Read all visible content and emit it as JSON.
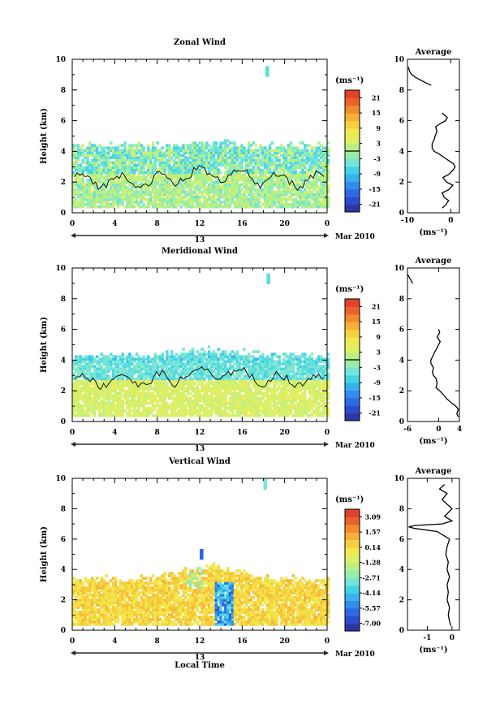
{
  "chart_data": [
    {
      "type": "heatmap",
      "title": "Zonal Wind",
      "ylabel": "Height (km)",
      "xlim": [
        0,
        24
      ],
      "ylim": [
        0,
        10
      ],
      "x_ticks": [
        "0",
        "4",
        "8",
        "12",
        "16",
        "20",
        "0"
      ],
      "y_ticks": [
        "0",
        "2",
        "4",
        "6",
        "8",
        "10"
      ],
      "date_label": "13",
      "month_label": "Mar 2010",
      "colorbar": {
        "unit": "(ms⁻¹)",
        "ticks": [
          "21",
          "15",
          "9",
          "3",
          "-3",
          "-9",
          "-15",
          "-21"
        ],
        "range": [
          -24,
          24
        ]
      },
      "average_profile": {
        "title": "Average",
        "xlabel": "(ms⁻¹)",
        "x_ticks": [
          "-10",
          "0"
        ],
        "xlim": [
          -10,
          2
        ],
        "y_ticks": [
          "0",
          "2",
          "4",
          "6",
          "8",
          "10"
        ],
        "heights": [
          0.3,
          0.5,
          0.8,
          1.0,
          1.3,
          1.5,
          1.8,
          2.0,
          2.3,
          2.5,
          2.8,
          3.0,
          3.2,
          3.4,
          3.6,
          3.8,
          4.0,
          4.2,
          4.5,
          4.8,
          5.0,
          5.3,
          5.6,
          5.8,
          6.0,
          6.2,
          6.5,
          8.3,
          8.5,
          8.8,
          9.0,
          9.2,
          9.5
        ],
        "values": [
          -2.0,
          -1.2,
          -0.5,
          -1.5,
          -2.0,
          -0.5,
          0.5,
          -1.0,
          -1.8,
          -0.5,
          0.6,
          1.0,
          0.6,
          -0.5,
          -1.5,
          -2.5,
          -3.8,
          -4.3,
          -4.3,
          -3.8,
          -3.6,
          -3.2,
          -3.5,
          -2.5,
          -1.2,
          -0.8,
          -2.0,
          -4.5,
          -6.0,
          -8.0,
          -9.0,
          -9.5,
          -9.8
        ]
      },
      "field": {
        "kind": "zonal",
        "top_km": 4.3,
        "top_km_noon": 4.5,
        "bottom_km": 0.3,
        "outliers": [
          [
            18.2,
            9.2,
            -6
          ]
        ]
      }
    },
    {
      "type": "heatmap",
      "title": "Meridional Wind",
      "ylabel": "Height (km)",
      "xlim": [
        0,
        24
      ],
      "ylim": [
        0,
        10
      ],
      "x_ticks": [
        "0",
        "4",
        "8",
        "12",
        "16",
        "20",
        "0"
      ],
      "y_ticks": [
        "0",
        "2",
        "4",
        "6",
        "8",
        "10"
      ],
      "date_label": "13",
      "month_label": "Mar 2010",
      "colorbar": {
        "unit": "(ms⁻¹)",
        "ticks": [
          "21",
          "15",
          "9",
          "3",
          "-3",
          "-9",
          "-15",
          "-21"
        ],
        "range": [
          -24,
          24
        ]
      },
      "average_profile": {
        "title": "Average",
        "xlabel": "(ms⁻¹)",
        "x_ticks": [
          "-6",
          "0",
          "4"
        ],
        "xlim": [
          -6,
          4
        ],
        "y_ticks": [
          "0",
          "2",
          "4",
          "6",
          "8",
          "10"
        ],
        "heights": [
          0.3,
          0.5,
          0.8,
          1.0,
          1.2,
          1.5,
          1.8,
          2.0,
          2.2,
          2.5,
          2.8,
          3.0,
          3.2,
          3.5,
          3.8,
          4.0,
          4.2,
          4.5,
          4.8,
          5.0,
          5.2,
          5.5,
          5.8,
          6.0,
          9.0,
          9.3,
          9.6
        ],
        "values": [
          3.8,
          3.5,
          3.8,
          3.3,
          2.5,
          1.5,
          0.8,
          0.2,
          -0.5,
          -0.3,
          -0.5,
          -1.0,
          -1.2,
          -1.0,
          -1.5,
          -1.5,
          -1.2,
          -0.8,
          -0.3,
          0.0,
          0.3,
          -0.3,
          0.2,
          0.0,
          -5.0,
          -5.5,
          -6.0
        ]
      },
      "field": {
        "kind": "meridional",
        "top_km": 4.2,
        "top_km_noon": 4.6,
        "bottom_km": 0.3,
        "outliers": [
          [
            18.3,
            9.3,
            -6
          ]
        ]
      }
    },
    {
      "type": "heatmap",
      "title": "Vertical Wind",
      "xlabel": "Local Time",
      "ylabel": "Height (km)",
      "xlim": [
        0,
        24
      ],
      "ylim": [
        0,
        10
      ],
      "x_ticks": [
        "0",
        "4",
        "8",
        "12",
        "16",
        "20",
        "0"
      ],
      "y_ticks": [
        "0",
        "2",
        "4",
        "6",
        "8",
        "10"
      ],
      "date_label": "13",
      "month_label": "Mar 2010",
      "colorbar": {
        "unit": "(ms⁻¹)",
        "ticks": [
          "3.09",
          "1.57",
          "0.14",
          "-1.28",
          "-2.71",
          "-4.14",
          "-5.57",
          "-7.00"
        ],
        "range": [
          -7.7,
          3.8
        ]
      },
      "average_profile": {
        "title": "Average",
        "xlabel": "(ms⁻¹)",
        "x_ticks": [
          "-1",
          "0"
        ],
        "xlim": [
          -1.8,
          0.3
        ],
        "y_ticks": [
          "0",
          "2",
          "4",
          "6",
          "8",
          "10"
        ],
        "heights": [
          0.3,
          0.6,
          1.0,
          1.5,
          2.0,
          2.5,
          3.0,
          3.5,
          4.0,
          4.5,
          5.0,
          5.5,
          6.0,
          6.5,
          6.7,
          6.8,
          6.9,
          7.0,
          7.2,
          7.5,
          8.0,
          8.3,
          8.6,
          9.0,
          9.3,
          9.6
        ],
        "values": [
          -0.05,
          -0.1,
          -0.15,
          -0.1,
          -0.2,
          -0.15,
          -0.2,
          -0.1,
          -0.2,
          -0.15,
          -0.25,
          -0.2,
          -0.1,
          -0.6,
          -1.5,
          -1.75,
          -1.5,
          -0.4,
          0.0,
          -0.3,
          0.0,
          -0.2,
          -0.4,
          -0.2,
          -0.5,
          -0.3
        ]
      },
      "field": {
        "kind": "vertical",
        "top_km": 3.3,
        "top_km_noon": 4.2,
        "bottom_km": 0.2,
        "outliers": [
          [
            18.0,
            9.6,
            -3.0
          ],
          [
            12.0,
            5.0,
            -6.0
          ]
        ]
      }
    }
  ]
}
